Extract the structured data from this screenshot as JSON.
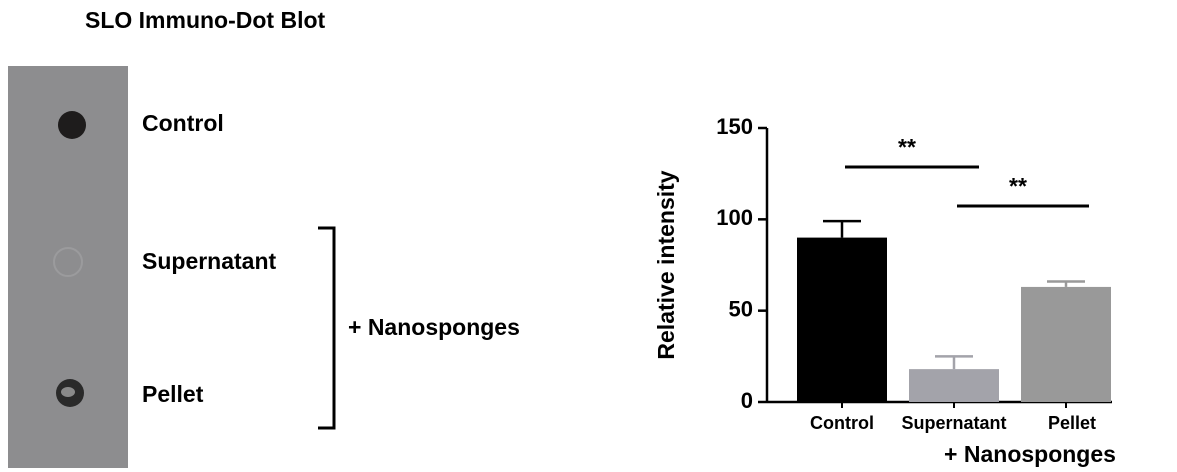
{
  "figure": {
    "title": "SLO Immuno-Dot Blot",
    "blot_labels": [
      "Control",
      "Supernatant",
      "Pellet"
    ],
    "bracket_label": "+ Nanosponges"
  },
  "chart_data": {
    "type": "bar",
    "ylabel": "Relative intensity",
    "categories": [
      "Control",
      "Supernatant",
      "Pellet"
    ],
    "group_label": "+ Nanosponges",
    "series": [
      {
        "values": [
          90,
          18,
          63
        ],
        "errors": [
          9,
          7,
          3
        ],
        "colors": [
          "#000000",
          "#a3a3aa",
          "#999999"
        ]
      }
    ],
    "ylim": [
      0,
      150
    ],
    "yticks": [
      0,
      50,
      100,
      150
    ],
    "annotations": [
      {
        "text": "**",
        "from": 0,
        "to": 1
      },
      {
        "text": "**",
        "from": 1,
        "to": 2
      }
    ]
  }
}
